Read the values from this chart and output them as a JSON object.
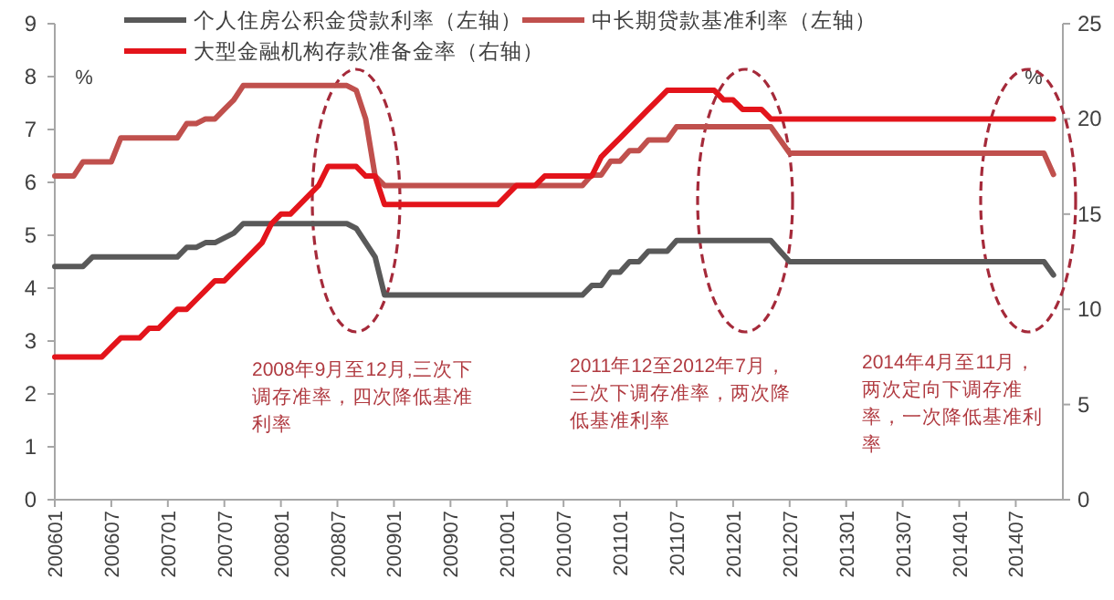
{
  "chart_data": {
    "type": "line",
    "ylabel": "%",
    "y2label": "%",
    "xlim": [
      "2006-01",
      "2014-12"
    ],
    "xticks": [
      {
        "value": "2006-01",
        "label": "200601"
      },
      {
        "value": "2006-07",
        "label": "200607"
      },
      {
        "value": "2007-01",
        "label": "200701"
      },
      {
        "value": "2007-07",
        "label": "200707"
      },
      {
        "value": "2008-01",
        "label": "200801"
      },
      {
        "value": "2008-07",
        "label": "200807"
      },
      {
        "value": "2009-01",
        "label": "200901"
      },
      {
        "value": "2009-07",
        "label": "200907"
      },
      {
        "value": "2010-01",
        "label": "201001"
      },
      {
        "value": "2010-07",
        "label": "201007"
      },
      {
        "value": "2011-01",
        "label": "201101"
      },
      {
        "value": "2011-07",
        "label": "201107"
      },
      {
        "value": "2012-01",
        "label": "201201"
      },
      {
        "value": "2012-07",
        "label": "201207"
      },
      {
        "value": "2013-01",
        "label": "201301"
      },
      {
        "value": "2013-07",
        "label": "201307"
      },
      {
        "value": "2014-01",
        "label": "201401"
      },
      {
        "value": "2014-07",
        "label": "201407"
      }
    ],
    "ylim": [
      0,
      9
    ],
    "yticks": [
      0,
      1,
      2,
      3,
      4,
      5,
      6,
      7,
      8,
      9
    ],
    "y2lim": [
      0,
      25
    ],
    "y2ticks": [
      0,
      5,
      10,
      15,
      20,
      25
    ],
    "legend": "top",
    "grid": false,
    "series": [
      {
        "name": "个人住房公积金贷款利率（左轴）",
        "color": "#595959",
        "x": [
          "2006-01",
          "2006-04",
          "2006-05",
          "2007-02",
          "2007-03",
          "2007-04",
          "2007-05",
          "2007-06",
          "2007-07",
          "2007-08",
          "2007-09",
          "2008-08",
          "2008-09",
          "2008-10",
          "2008-11",
          "2008-12",
          "2010-09",
          "2010-10",
          "2010-11",
          "2010-12",
          "2011-01",
          "2011-02",
          "2011-03",
          "2011-04",
          "2011-06",
          "2011-07",
          "2012-05",
          "2012-06",
          "2012-07",
          "2014-10",
          "2014-11"
        ],
        "values": [
          4.41,
          4.41,
          4.59,
          4.59,
          4.77,
          4.77,
          4.86,
          4.86,
          4.95,
          5.04,
          5.22,
          5.22,
          5.13,
          4.86,
          4.59,
          3.87,
          3.87,
          4.05,
          4.05,
          4.3,
          4.3,
          4.5,
          4.5,
          4.7,
          4.7,
          4.9,
          4.9,
          4.7,
          4.5,
          4.5,
          4.25
        ]
      },
      {
        "name": "中长期贷款基准利率（左轴）",
        "color": "#c0504d",
        "x": [
          "2006-01",
          "2006-03",
          "2006-04",
          "2006-07",
          "2006-08",
          "2007-02",
          "2007-03",
          "2007-04",
          "2007-05",
          "2007-06",
          "2007-07",
          "2007-08",
          "2007-09",
          "2008-08",
          "2008-09",
          "2008-10",
          "2008-11",
          "2008-12",
          "2010-09",
          "2010-10",
          "2010-11",
          "2010-12",
          "2011-01",
          "2011-02",
          "2011-03",
          "2011-04",
          "2011-06",
          "2011-07",
          "2012-05",
          "2012-06",
          "2012-07",
          "2014-10",
          "2014-11"
        ],
        "values": [
          6.12,
          6.12,
          6.39,
          6.39,
          6.84,
          6.84,
          7.11,
          7.11,
          7.2,
          7.2,
          7.38,
          7.56,
          7.83,
          7.83,
          7.74,
          7.2,
          6.12,
          5.94,
          5.94,
          6.14,
          6.14,
          6.4,
          6.4,
          6.6,
          6.6,
          6.8,
          6.8,
          7.05,
          7.05,
          6.8,
          6.55,
          6.55,
          6.15
        ]
      },
      {
        "name": "大型金融机构存款准备金率（右轴）",
        "color": "#e3141b",
        "axis": "y2",
        "x": [
          "2006-01",
          "2006-06",
          "2006-07",
          "2006-08",
          "2006-10",
          "2006-11",
          "2006-12",
          "2007-01",
          "2007-02",
          "2007-03",
          "2007-04",
          "2007-05",
          "2007-06",
          "2007-07",
          "2007-08",
          "2007-09",
          "2007-10",
          "2007-11",
          "2007-12",
          "2008-01",
          "2008-02",
          "2008-03",
          "2008-04",
          "2008-05",
          "2008-06",
          "2008-09",
          "2008-10",
          "2008-11",
          "2008-12",
          "2009-12",
          "2010-01",
          "2010-02",
          "2010-04",
          "2010-05",
          "2010-10",
          "2010-11",
          "2010-12",
          "2011-01",
          "2011-02",
          "2011-03",
          "2011-04",
          "2011-05",
          "2011-06",
          "2011-11",
          "2011-12",
          "2012-01",
          "2012-02",
          "2012-04",
          "2012-05",
          "2014-11"
        ],
        "values": [
          7.5,
          7.5,
          8,
          8.5,
          8.5,
          9,
          9,
          9.5,
          10,
          10,
          10.5,
          11,
          11.5,
          11.5,
          12,
          12.5,
          13,
          13.5,
          14.5,
          15,
          15,
          15.5,
          16,
          16.5,
          17.5,
          17.5,
          17,
          17,
          15.5,
          15.5,
          16,
          16.5,
          16.5,
          17,
          17,
          18,
          18.5,
          19,
          19.5,
          20,
          20.5,
          21,
          21.5,
          21.5,
          21,
          21,
          20.5,
          20.5,
          20,
          20
        ]
      }
    ],
    "annotations": [
      "2008年9月至12月,三次下调存准率，四次降低基准利率",
      "2011年12至2012年7月，三次下调存准率，两次降低基准利率",
      "2014年4月至11月，两次定向下调存准率，一次降低基准利率"
    ]
  }
}
